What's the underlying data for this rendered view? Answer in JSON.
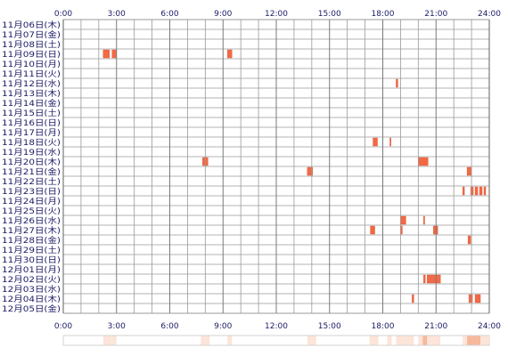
{
  "chart_data": {
    "type": "heatmap",
    "title": "",
    "xlabel": "",
    "ylabel": "",
    "x_unit": "hour",
    "xlim": [
      0,
      24
    ],
    "x_ticks": [
      0,
      3,
      6,
      9,
      12,
      15,
      18,
      21,
      24
    ],
    "x_tick_labels": [
      "0:00",
      "3:00",
      "6:00",
      "9:00",
      "12:00",
      "15:00",
      "18:00",
      "21:00",
      "24:00"
    ],
    "grid": true,
    "colors": {
      "activity": "#f26a45",
      "activity_edge": "#e05030",
      "grid": "#9a9a9a",
      "grid_frame": "#7a7a7a",
      "label": "#1a1a66",
      "summary_low": "#fce4d8",
      "summary_high": "#f7b89a"
    },
    "rows": [
      {
        "label": "11月06日(木)",
        "events": []
      },
      {
        "label": "11月07日(金)",
        "events": []
      },
      {
        "label": "11月08日(土)",
        "events": []
      },
      {
        "label": "11月09日(日)",
        "events": [
          [
            2.25,
            2.6
          ],
          [
            2.75,
            3.0
          ],
          [
            9.25,
            9.5
          ]
        ]
      },
      {
        "label": "11月10日(月)",
        "events": []
      },
      {
        "label": "11月11日(火)",
        "events": []
      },
      {
        "label": "11月12日(水)",
        "events": [
          [
            18.75,
            18.85
          ]
        ]
      },
      {
        "label": "11月13日(木)",
        "events": []
      },
      {
        "label": "11月14日(金)",
        "events": []
      },
      {
        "label": "11月15日(土)",
        "events": []
      },
      {
        "label": "11月16日(日)",
        "events": []
      },
      {
        "label": "11月17日(月)",
        "events": []
      },
      {
        "label": "11月18日(火)",
        "events": [
          [
            17.45,
            17.7
          ],
          [
            18.4,
            18.45
          ]
        ]
      },
      {
        "label": "11月19日(水)",
        "events": []
      },
      {
        "label": "11月20日(木)",
        "events": [
          [
            7.85,
            8.15
          ],
          [
            20.0,
            20.55
          ]
        ]
      },
      {
        "label": "11月21日(金)",
        "events": [
          [
            13.75,
            14.05
          ],
          [
            22.75,
            23.0
          ]
        ]
      },
      {
        "label": "11月22日(土)",
        "events": []
      },
      {
        "label": "11月23日(日)",
        "events": [
          [
            22.5,
            22.6
          ],
          [
            22.95,
            23.1
          ],
          [
            23.2,
            23.35
          ],
          [
            23.45,
            23.6
          ],
          [
            23.7,
            23.8
          ]
        ]
      },
      {
        "label": "11月24日(月)",
        "events": []
      },
      {
        "label": "11月25日(火)",
        "events": []
      },
      {
        "label": "11月26日(水)",
        "events": [
          [
            19.0,
            19.3
          ],
          [
            20.3,
            20.35
          ]
        ]
      },
      {
        "label": "11月27日(木)",
        "events": [
          [
            17.3,
            17.55
          ],
          [
            19.0,
            19.1
          ],
          [
            20.85,
            21.1
          ]
        ]
      },
      {
        "label": "11月28日(金)",
        "events": [
          [
            22.8,
            22.95
          ]
        ]
      },
      {
        "label": "11月29日(土)",
        "events": []
      },
      {
        "label": "11月30日(日)",
        "events": []
      },
      {
        "label": "12月01日(月)",
        "events": []
      },
      {
        "label": "12月02日(火)",
        "events": [
          [
            20.3,
            20.4
          ],
          [
            20.5,
            21.25
          ]
        ]
      },
      {
        "label": "12月03日(水)",
        "events": []
      },
      {
        "label": "12月04日(木)",
        "events": [
          [
            19.65,
            19.75
          ],
          [
            22.85,
            23.05
          ],
          [
            23.2,
            23.5
          ]
        ]
      },
      {
        "label": "12月05日(金)",
        "events": []
      }
    ]
  }
}
